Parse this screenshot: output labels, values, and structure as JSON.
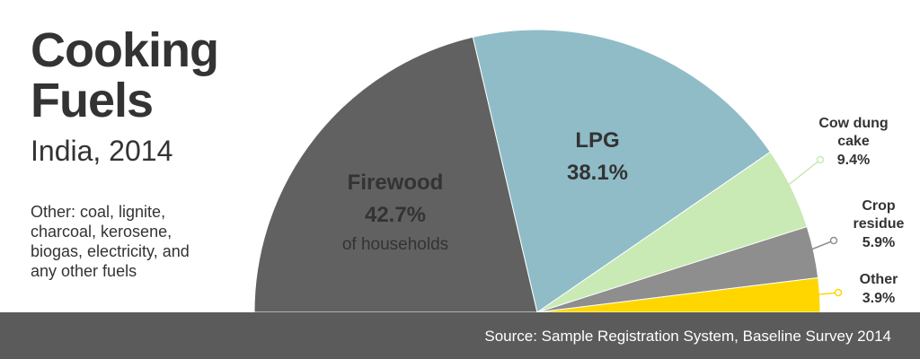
{
  "chart_data": {
    "type": "semipie",
    "title": "Cooking Fuels",
    "subtitle": "India, 2014",
    "note": "Other:  coal, lignite, charcoal, kerosene, biogas, electricity, and any other fuels",
    "annotation": "of households",
    "source": "Source: Sample Registration System, Baseline Survey 2014",
    "categories": [
      "Firewood",
      "LPG",
      "Cow dung cake",
      "Crop residue",
      "Other"
    ],
    "values": [
      42.7,
      38.1,
      9.4,
      5.9,
      3.9
    ],
    "value_labels": [
      "42.7%",
      "38.1%",
      "9.4%",
      "5.9%",
      "3.9%"
    ],
    "colors": [
      "#616161",
      "#8fbcc7",
      "#c9e9b5",
      "#8e8e8e",
      "#ffd600"
    ]
  }
}
